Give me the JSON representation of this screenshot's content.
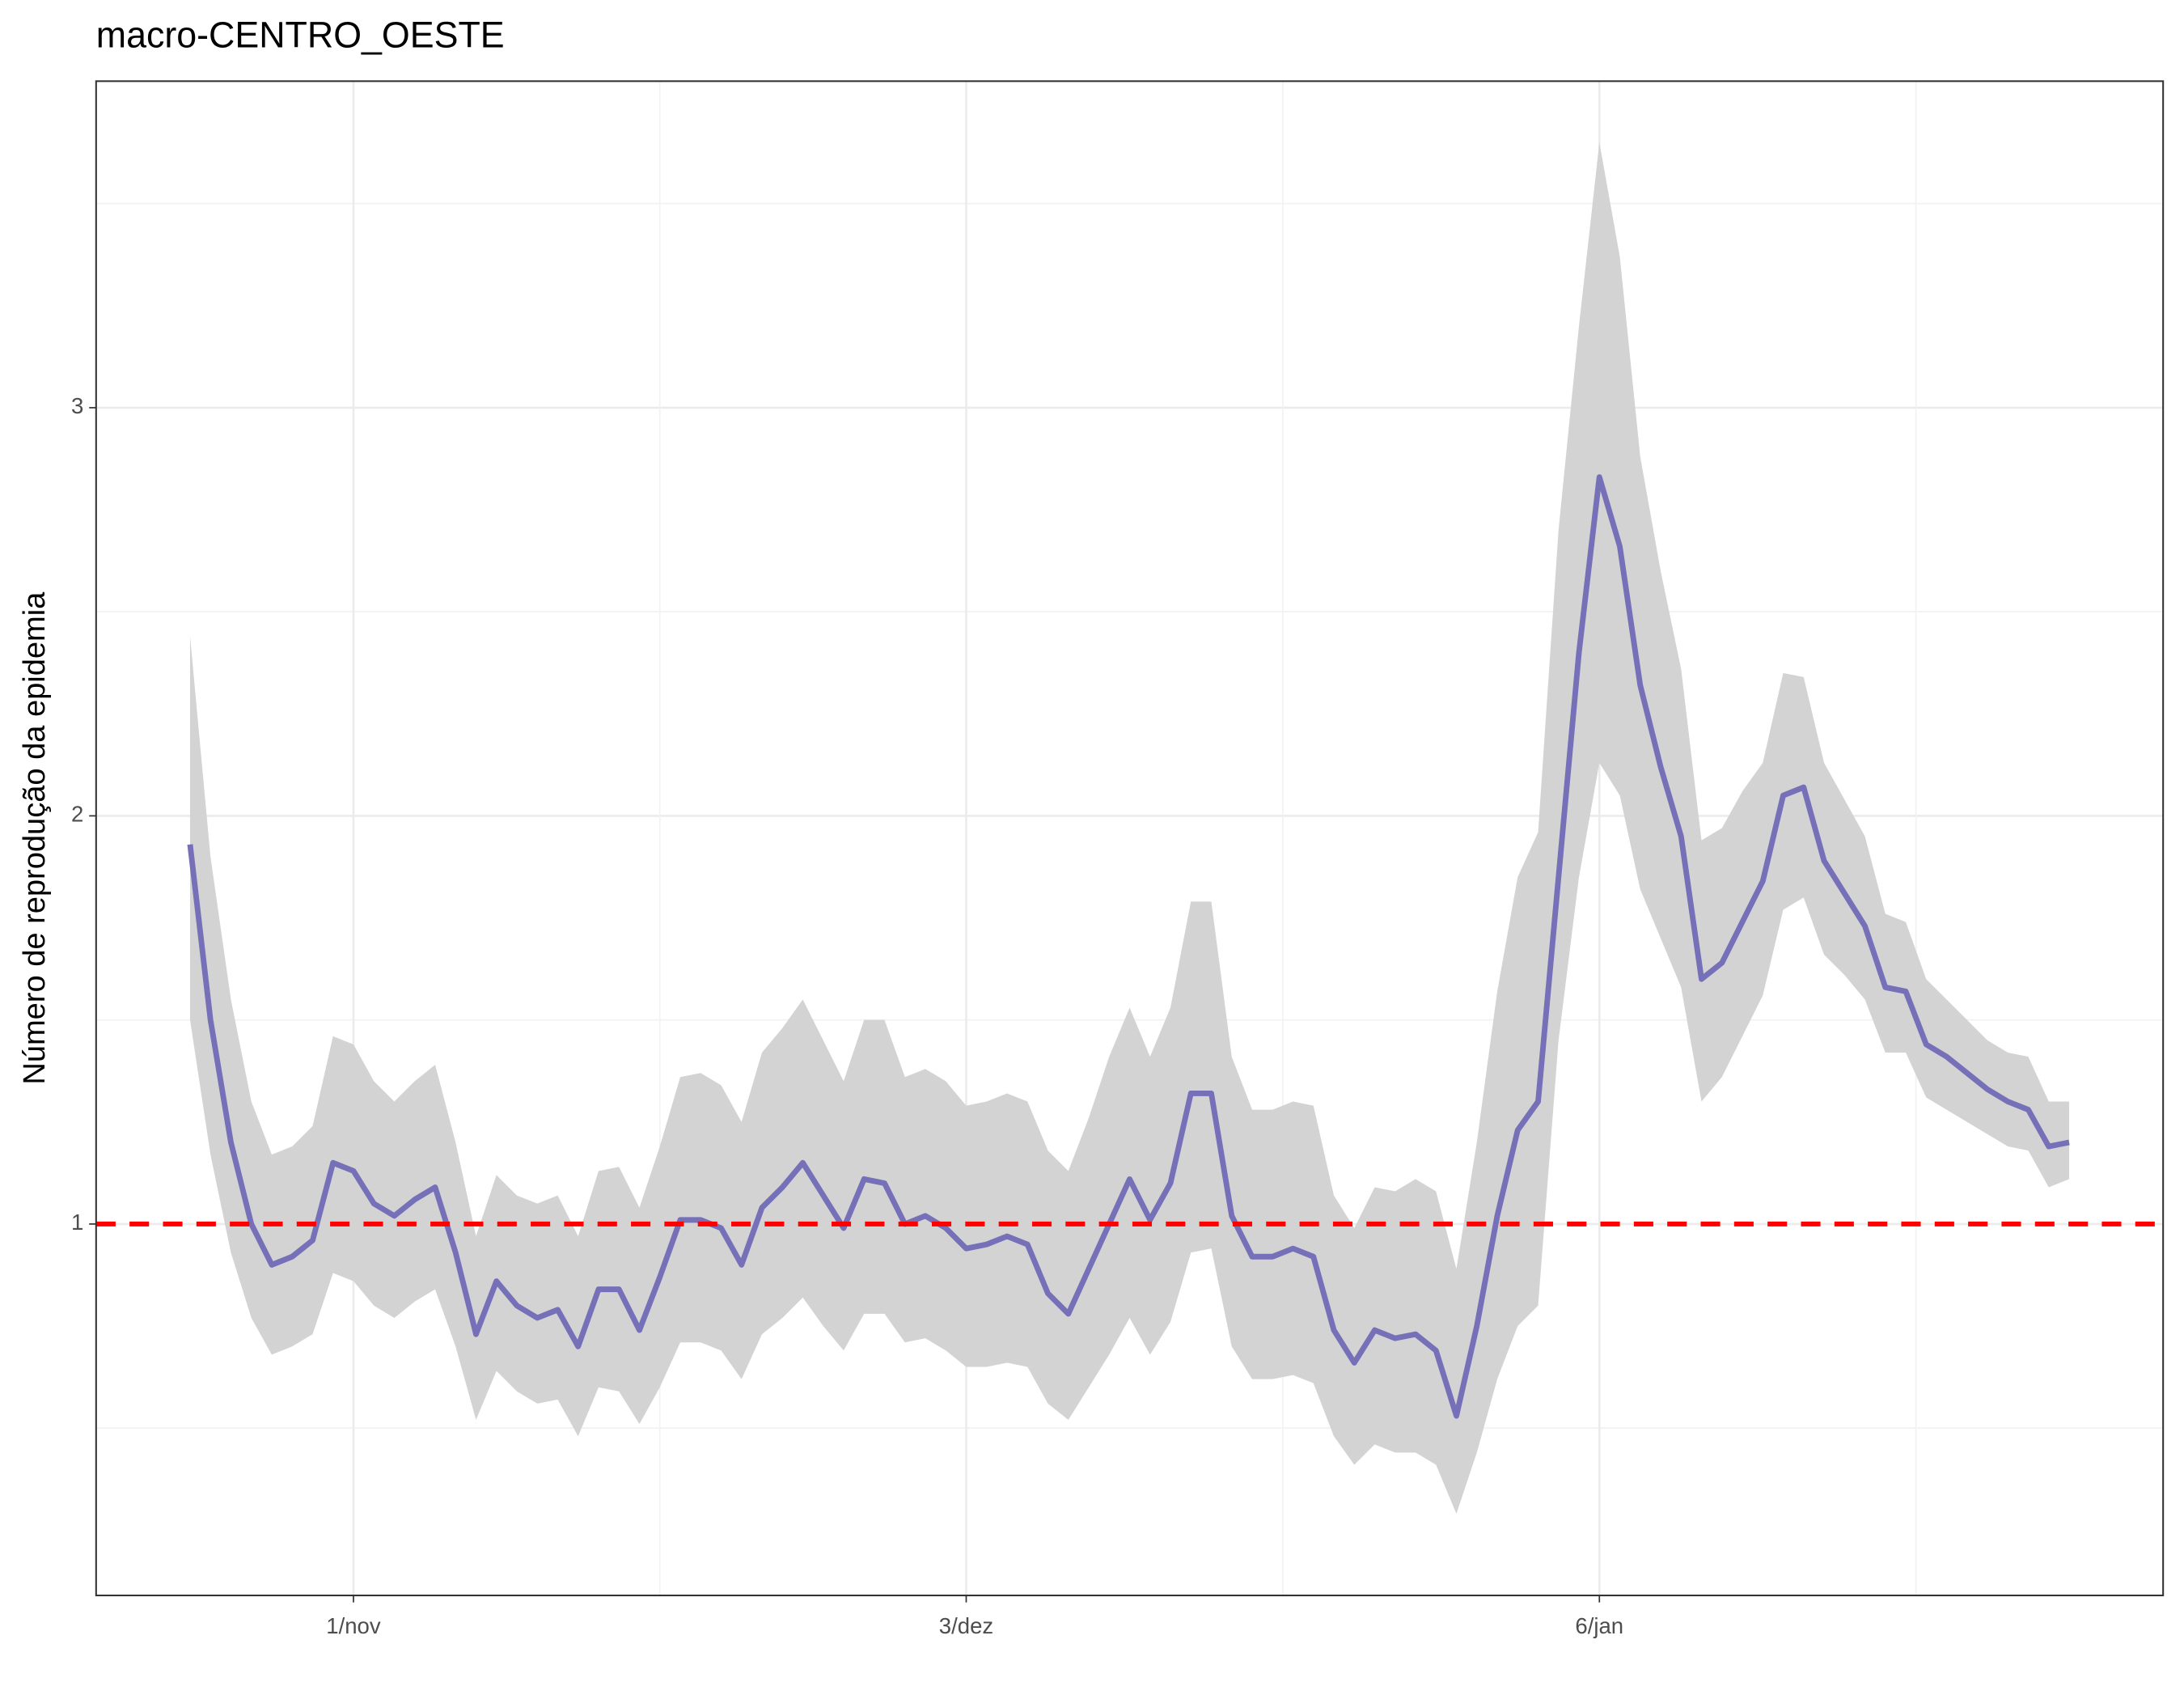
{
  "chart_data": {
    "type": "line",
    "title": "macro-CENTRO_OESTE",
    "y_label": "Número de reprodução da epidemia",
    "categories": [
      null,
      null,
      null,
      null,
      null,
      null,
      null,
      null,
      "1/nov",
      null,
      null,
      null,
      null,
      null,
      null,
      null,
      null,
      null,
      null,
      null,
      null,
      null,
      null,
      null,
      null,
      null,
      null,
      null,
      null,
      null,
      null,
      null,
      null,
      null,
      null,
      null,
      null,
      null,
      "3/dez",
      null,
      null,
      null,
      null,
      null,
      null,
      null,
      null,
      null,
      null,
      null,
      null,
      null,
      null,
      null,
      null,
      null,
      null,
      null,
      null,
      null,
      null,
      null,
      null,
      null,
      null,
      null,
      null,
      null,
      null,
      "6/jan",
      null,
      null,
      null,
      null,
      null,
      null,
      null,
      null,
      null,
      null,
      null,
      null,
      null,
      null,
      null,
      null,
      null,
      null,
      null,
      null,
      null,
      null,
      null
    ],
    "values": [
      1.93,
      1.5,
      1.2,
      1.0,
      0.9,
      0.92,
      0.96,
      1.15,
      1.13,
      1.05,
      1.02,
      1.06,
      1.09,
      0.93,
      0.73,
      0.86,
      0.8,
      0.77,
      0.79,
      0.7,
      0.84,
      0.84,
      0.74,
      0.87,
      1.01,
      1.01,
      0.99,
      0.9,
      1.04,
      1.09,
      1.15,
      1.07,
      0.99,
      1.11,
      1.1,
      1.0,
      1.02,
      0.99,
      0.94,
      0.95,
      0.97,
      0.95,
      0.83,
      0.78,
      0.89,
      1.0,
      1.11,
      1.01,
      1.1,
      1.32,
      1.32,
      1.02,
      0.92,
      0.92,
      0.94,
      0.92,
      0.74,
      0.66,
      0.74,
      0.72,
      0.73,
      0.69,
      0.53,
      0.75,
      1.02,
      1.23,
      1.3,
      1.85,
      2.4,
      2.83,
      2.66,
      2.32,
      2.12,
      1.95,
      1.6,
      1.64,
      1.74,
      1.84,
      2.05,
      2.07,
      1.89,
      1.81,
      1.73,
      1.58,
      1.57,
      1.44,
      1.41,
      1.37,
      1.33,
      1.3,
      1.28,
      1.19,
      1.2
    ],
    "upper": [
      2.44,
      1.9,
      1.55,
      1.3,
      1.17,
      1.19,
      1.24,
      1.46,
      1.44,
      1.35,
      1.3,
      1.35,
      1.39,
      1.2,
      0.97,
      1.12,
      1.07,
      1.05,
      1.07,
      0.97,
      1.13,
      1.14,
      1.04,
      1.19,
      1.36,
      1.37,
      1.34,
      1.25,
      1.42,
      1.48,
      1.55,
      1.45,
      1.35,
      1.5,
      1.5,
      1.36,
      1.38,
      1.35,
      1.29,
      1.3,
      1.32,
      1.3,
      1.18,
      1.13,
      1.26,
      1.41,
      1.53,
      1.41,
      1.53,
      1.79,
      1.79,
      1.41,
      1.28,
      1.28,
      1.3,
      1.29,
      1.07,
      0.99,
      1.09,
      1.08,
      1.11,
      1.08,
      0.89,
      1.2,
      1.57,
      1.85,
      1.96,
      2.7,
      3.2,
      3.65,
      3.37,
      2.88,
      2.6,
      2.36,
      1.94,
      1.97,
      2.06,
      2.13,
      2.35,
      2.34,
      2.13,
      2.04,
      1.95,
      1.76,
      1.74,
      1.6,
      1.55,
      1.5,
      1.45,
      1.42,
      1.41,
      1.3,
      1.3
    ],
    "lower": [
      1.5,
      1.17,
      0.93,
      0.77,
      0.68,
      0.7,
      0.73,
      0.88,
      0.86,
      0.8,
      0.77,
      0.81,
      0.84,
      0.7,
      0.52,
      0.64,
      0.59,
      0.56,
      0.57,
      0.48,
      0.6,
      0.59,
      0.51,
      0.6,
      0.71,
      0.71,
      0.69,
      0.62,
      0.73,
      0.77,
      0.82,
      0.75,
      0.69,
      0.78,
      0.78,
      0.71,
      0.72,
      0.69,
      0.65,
      0.65,
      0.66,
      0.65,
      0.56,
      0.52,
      0.6,
      0.68,
      0.77,
      0.68,
      0.76,
      0.93,
      0.94,
      0.7,
      0.62,
      0.62,
      0.63,
      0.61,
      0.48,
      0.41,
      0.46,
      0.44,
      0.44,
      0.41,
      0.29,
      0.44,
      0.62,
      0.75,
      0.8,
      1.45,
      1.85,
      2.13,
      2.05,
      1.82,
      1.7,
      1.58,
      1.3,
      1.36,
      1.46,
      1.56,
      1.77,
      1.8,
      1.66,
      1.61,
      1.55,
      1.42,
      1.42,
      1.31,
      1.28,
      1.25,
      1.22,
      1.19,
      1.18,
      1.09,
      1.11
    ],
    "color": "#7570b8",
    "band_color": "#d3d3d3",
    "hline": {
      "value": 1,
      "color": "#ff0000"
    },
    "ylim": [
      0.09,
      3.8
    ],
    "yticks": [
      1,
      2,
      3
    ],
    "grid": true
  }
}
